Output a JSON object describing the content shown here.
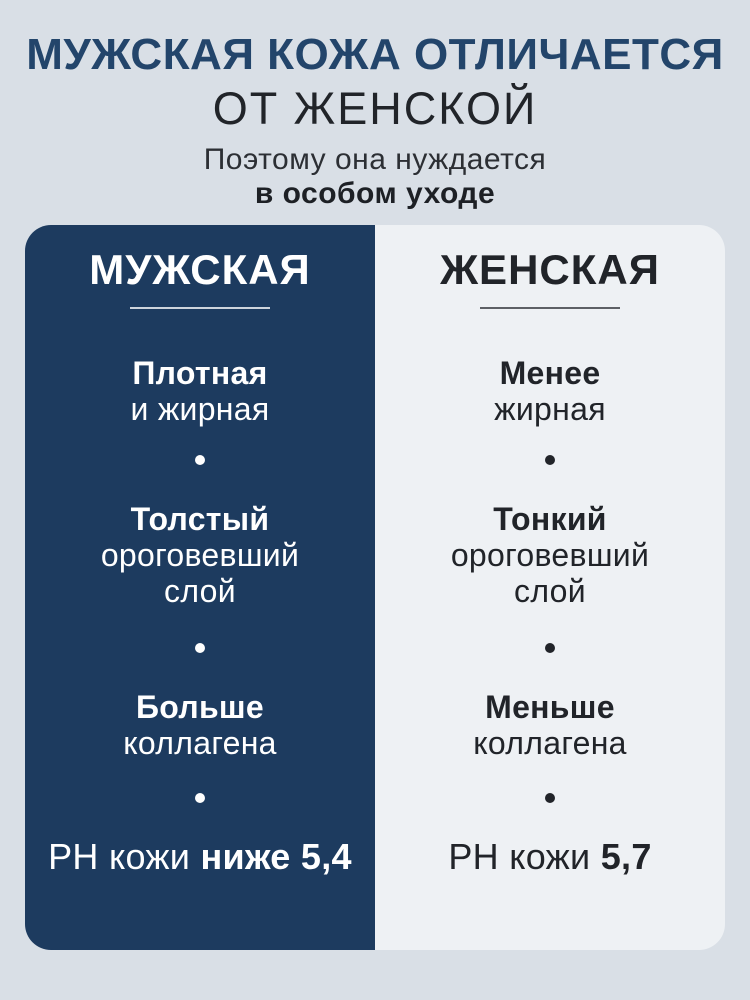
{
  "header": {
    "title_line1": "МУЖСКАЯ КОЖА ОТЛИЧАЕТСЯ",
    "title_line2": "ОТ ЖЕНСКОЙ",
    "subtitle_line1": "Поэтому она нуждается",
    "subtitle_line2": "в особом уходе"
  },
  "comparison": {
    "left": {
      "title": "МУЖСКАЯ",
      "items": [
        {
          "lines": [
            "Плотная",
            "и жирная"
          ]
        },
        {
          "lines": [
            "Толстый",
            "ороговевший",
            "слой"
          ]
        },
        {
          "lines": [
            "Больше",
            "коллагена"
          ]
        }
      ],
      "ph_prefix": "PH кожи",
      "ph_value": "ниже 5,4"
    },
    "right": {
      "title": "ЖЕНСКАЯ",
      "items": [
        {
          "lines": [
            "Менее",
            "жирная"
          ]
        },
        {
          "lines": [
            "Тонкий",
            "ороговевший",
            "слой"
          ]
        },
        {
          "lines": [
            "Меньше",
            "коллагена"
          ]
        }
      ],
      "ph_prefix": "PH кожи",
      "ph_value": "5,7"
    }
  },
  "colors": {
    "page_background": "#d9dfe6",
    "title_navy": "#23456b",
    "panel_navy": "#1d3b5f",
    "panel_light": "#eef1f4",
    "dark_text": "#212429",
    "light_text": "#ffffff"
  }
}
